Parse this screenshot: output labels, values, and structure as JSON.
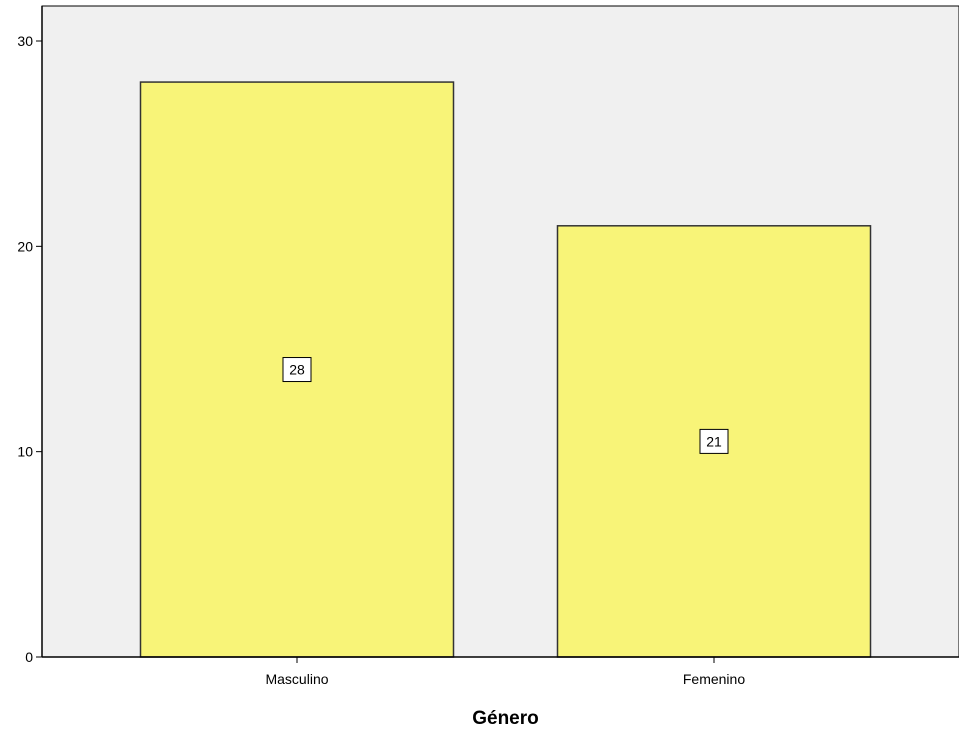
{
  "chart_data": {
    "type": "bar",
    "categories": [
      "Masculino",
      "Femenino"
    ],
    "values": [
      28,
      21
    ],
    "data_labels": [
      "28",
      "21"
    ],
    "title": "",
    "xlabel": "Género",
    "ylabel": "",
    "ylim": [
      0,
      30
    ],
    "yticks": [
      0,
      10,
      20,
      30
    ],
    "ytick_labels": [
      "0",
      "10",
      "20",
      "30"
    ],
    "grid": false,
    "legend": "none",
    "colors": {
      "bar_fill": "#f8f478",
      "bar_stroke": "#333333",
      "plot_background": "#f0f0f0",
      "axis": "#000000",
      "label_box_fill": "#ffffff"
    }
  }
}
